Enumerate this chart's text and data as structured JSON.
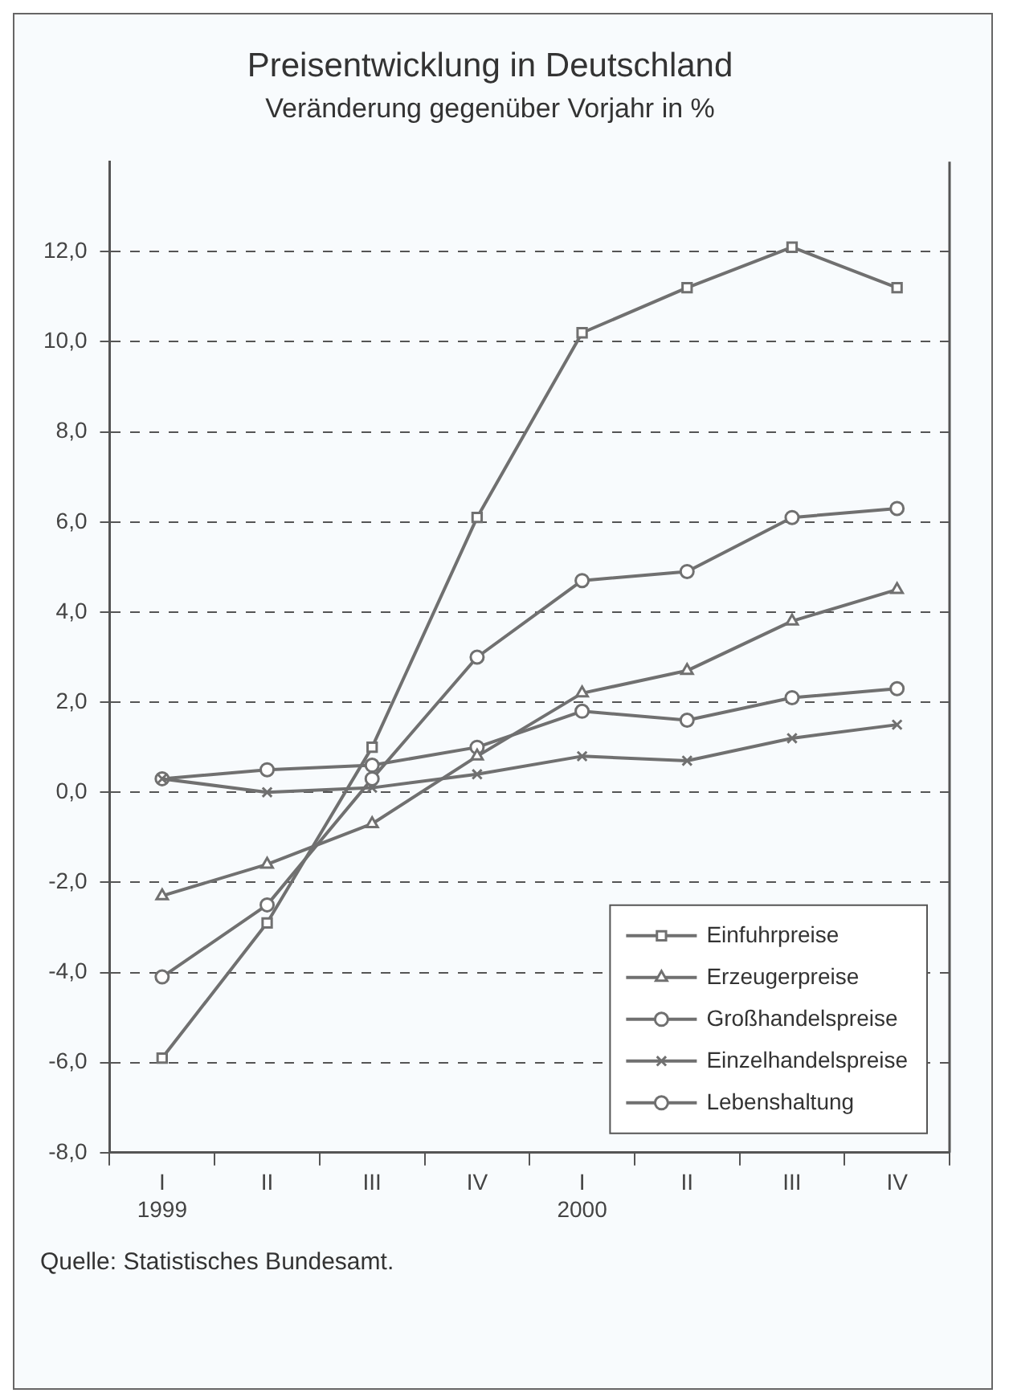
{
  "chart_data": {
    "type": "line",
    "title": "Preisentwicklung in Deutschland",
    "subtitle": "Veränderung gegenüber Vorjahr in %",
    "categories": [
      "I\n1999",
      "II",
      "III",
      "IV",
      "I\n2000",
      "II",
      "III",
      "IV"
    ],
    "series": [
      {
        "name": "Einfuhrpreise",
        "color": "#707070",
        "marker": "square",
        "values": [
          -5.9,
          -2.9,
          1.0,
          6.1,
          10.2,
          11.2,
          12.1,
          11.2
        ]
      },
      {
        "name": "Erzeugerpreise",
        "color": "#707070",
        "marker": "triangle",
        "values": [
          -2.3,
          -1.6,
          -0.7,
          0.8,
          2.2,
          2.7,
          3.8,
          4.5
        ]
      },
      {
        "name": "Großhandelspreise",
        "color": "#707070",
        "marker": "circle",
        "values": [
          -4.1,
          -2.5,
          0.3,
          3.0,
          4.7,
          4.9,
          6.1,
          6.3
        ]
      },
      {
        "name": "Einzelhandelspreise",
        "color": "#707070",
        "marker": "cross",
        "values": [
          0.3,
          0.0,
          0.1,
          0.4,
          0.8,
          0.7,
          1.2,
          1.5
        ]
      },
      {
        "name": "Lebenshaltung",
        "color": "#707070",
        "marker": "circle",
        "values": [
          0.3,
          0.5,
          0.6,
          1.0,
          1.8,
          1.6,
          2.1,
          2.3
        ]
      }
    ],
    "ylim": [
      -8,
      14
    ],
    "yticks": [
      {
        "value": -8,
        "label": "-8,0"
      },
      {
        "value": -6,
        "label": "-6,0"
      },
      {
        "value": -4,
        "label": "-4,0"
      },
      {
        "value": -2,
        "label": "-2,0"
      },
      {
        "value": 0,
        "label": "0,0"
      },
      {
        "value": 2,
        "label": "2,0"
      },
      {
        "value": 4,
        "label": "4,0"
      },
      {
        "value": 6,
        "label": "6,0"
      },
      {
        "value": 8,
        "label": "8,0"
      },
      {
        "value": 10,
        "label": "10,0"
      },
      {
        "value": 12,
        "label": "12,0"
      }
    ],
    "grid": "y",
    "legend": "bottom right",
    "line_style": "solid",
    "annotations": [
      "Quelle: Statistisches Bundesamt."
    ]
  }
}
